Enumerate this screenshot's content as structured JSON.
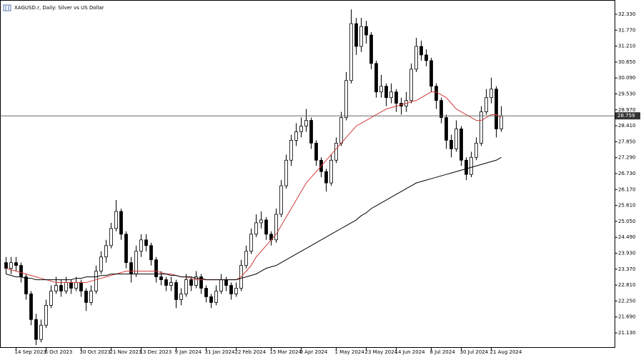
{
  "chart_data": {
    "type": "candlestick",
    "title": "XAGUSD.r, Daily:  Silver vs US Dollar",
    "categories": [
      null,
      null,
      "14 Sep 2023",
      null,
      null,
      null,
      null,
      null,
      "6 Oct 2023",
      null,
      null,
      null,
      null,
      null,
      null,
      "30 Oct 2023",
      null,
      null,
      null,
      null,
      null,
      "21 Nov 2023",
      null,
      null,
      null,
      null,
      null,
      "13 Dec 2023",
      null,
      null,
      null,
      null,
      null,
      null,
      "9 Jan 2024",
      null,
      null,
      null,
      null,
      null,
      "31 Jan 2024",
      null,
      null,
      null,
      null,
      null,
      "22 Feb 2024",
      null,
      null,
      null,
      null,
      null,
      null,
      "15 Mar 2024",
      null,
      null,
      null,
      null,
      null,
      "9 Apr 2024",
      null,
      null,
      null,
      null,
      null,
      null,
      "1 May 2024",
      null,
      null,
      null,
      null,
      null,
      "23 May 2024",
      null,
      null,
      null,
      null,
      null,
      "14 Jun 2024",
      null,
      null,
      null,
      null,
      null,
      null,
      "8 Jul 2024",
      null,
      null,
      null,
      null,
      null,
      "30 Jul 2024",
      null,
      null,
      null,
      null,
      null,
      "21 Aug 2024",
      null,
      null
    ],
    "open": [
      23.6,
      23.4,
      23.6,
      23.5,
      23.1,
      22.5,
      21.6,
      20.9,
      21.4,
      22.1,
      22.6,
      22.8,
      22.6,
      22.9,
      22.7,
      22.9,
      22.6,
      22.2,
      22.6,
      23.3,
      23.8,
      24.2,
      24.8,
      25.4,
      24.6,
      23.6,
      23.2,
      24.0,
      24.4,
      24.2,
      23.7,
      23.1,
      23.0,
      22.8,
      22.9,
      22.3,
      22.5,
      23.0,
      22.8,
      23.1,
      22.7,
      22.4,
      22.2,
      22.6,
      23.0,
      22.8,
      22.5,
      22.7,
      23.5,
      24.0,
      24.6,
      25.0,
      25.1,
      24.6,
      24.4,
      25.3,
      26.3,
      27.2,
      27.9,
      28.2,
      28.4,
      28.6,
      27.8,
      27.2,
      26.8,
      26.4,
      27.2,
      27.8,
      28.7,
      30.0,
      32.0,
      31.2,
      31.9,
      31.6,
      30.6,
      29.6,
      29.8,
      29.4,
      29.6,
      29.2,
      29.1,
      29.3,
      30.4,
      31.2,
      30.9,
      30.7,
      29.8,
      29.3,
      28.7,
      27.9,
      27.6,
      28.3,
      27.2,
      26.7,
      27.3,
      27.8,
      28.9,
      29.4,
      29.7,
      28.3
    ],
    "high": [
      23.8,
      23.8,
      23.8,
      23.6,
      23.2,
      22.6,
      21.8,
      21.6,
      22.3,
      22.8,
      23.1,
      23.0,
      23.1,
      23.0,
      23.1,
      23.0,
      22.7,
      22.8,
      23.5,
      24.0,
      24.4,
      25.0,
      25.8,
      25.5,
      24.7,
      23.8,
      24.2,
      24.6,
      24.6,
      24.3,
      23.8,
      23.3,
      23.1,
      23.1,
      23.0,
      22.7,
      23.2,
      23.1,
      23.3,
      23.2,
      22.8,
      22.5,
      22.8,
      23.2,
      23.1,
      22.9,
      22.9,
      23.7,
      24.2,
      24.8,
      25.3,
      25.4,
      25.2,
      24.7,
      25.5,
      26.5,
      27.4,
      28.1,
      28.5,
      28.7,
      29.0,
      28.7,
      27.9,
      27.3,
      26.9,
      27.4,
      28.0,
      28.9,
      30.3,
      32.5,
      32.2,
      32.2,
      32.1,
      31.7,
      30.7,
      30.2,
      29.9,
      29.9,
      29.7,
      29.4,
      29.6,
      30.6,
      31.5,
      31.4,
      31.1,
      30.8,
      29.9,
      29.4,
      28.8,
      28.1,
      28.6,
      28.4,
      27.3,
      27.5,
      28.0,
      29.1,
      29.7,
      30.1,
      29.8,
      29.1
    ],
    "low": [
      23.2,
      23.2,
      23.3,
      22.9,
      22.3,
      21.4,
      20.7,
      20.8,
      21.3,
      22.0,
      22.5,
      22.4,
      22.5,
      22.5,
      22.6,
      22.4,
      21.9,
      22.1,
      22.5,
      23.2,
      23.6,
      24.1,
      24.7,
      24.4,
      23.4,
      22.9,
      23.1,
      23.8,
      24.0,
      23.5,
      22.9,
      22.8,
      22.6,
      22.6,
      22.0,
      22.1,
      22.4,
      22.6,
      22.7,
      22.5,
      22.2,
      22.0,
      22.1,
      22.5,
      22.6,
      22.3,
      22.4,
      22.6,
      23.4,
      23.9,
      24.5,
      24.8,
      24.4,
      24.2,
      24.3,
      25.2,
      26.2,
      27.0,
      27.7,
      28.0,
      28.2,
      27.6,
      27.0,
      26.6,
      26.1,
      26.3,
      27.1,
      27.7,
      28.6,
      29.9,
      30.9,
      31.0,
      31.3,
      30.4,
      29.4,
      29.4,
      29.1,
      29.2,
      28.9,
      28.8,
      28.9,
      29.2,
      30.3,
      30.7,
      30.5,
      29.6,
      29.0,
      28.5,
      27.6,
      27.3,
      27.5,
      27.0,
      26.5,
      26.6,
      27.2,
      27.7,
      28.8,
      29.2,
      28.0,
      28.2
    ],
    "close": [
      23.4,
      23.6,
      23.5,
      23.1,
      22.5,
      21.6,
      20.9,
      21.4,
      22.1,
      22.6,
      22.8,
      22.6,
      22.9,
      22.7,
      22.9,
      22.6,
      22.2,
      22.6,
      23.3,
      23.8,
      24.2,
      24.8,
      25.4,
      24.6,
      23.6,
      23.2,
      24.0,
      24.4,
      24.2,
      23.7,
      23.1,
      23.0,
      22.8,
      22.9,
      22.3,
      22.5,
      23.0,
      22.8,
      23.1,
      22.7,
      22.4,
      22.2,
      22.6,
      23.0,
      22.8,
      22.5,
      22.7,
      23.5,
      24.0,
      24.6,
      25.0,
      25.1,
      24.6,
      24.4,
      25.3,
      26.3,
      27.2,
      27.9,
      28.2,
      28.4,
      28.6,
      27.8,
      27.2,
      26.8,
      26.4,
      27.2,
      27.8,
      28.7,
      30.0,
      32.0,
      31.2,
      31.9,
      31.6,
      30.6,
      29.6,
      29.8,
      29.4,
      29.6,
      29.2,
      29.1,
      29.3,
      30.4,
      31.2,
      30.9,
      30.7,
      29.8,
      29.3,
      28.7,
      27.9,
      27.6,
      28.3,
      27.2,
      26.7,
      27.3,
      27.8,
      28.9,
      29.4,
      29.7,
      28.3,
      28.76
    ],
    "lines": [
      {
        "color": "#d23a3a",
        "values": [
          23.4,
          23.35,
          23.3,
          23.25,
          23.2,
          23.15,
          23.1,
          23.05,
          23.0,
          22.95,
          22.9,
          22.9,
          22.9,
          22.9,
          22.9,
          22.9,
          22.9,
          22.95,
          23.0,
          23.05,
          23.1,
          23.15,
          23.2,
          23.25,
          23.3,
          23.3,
          23.3,
          23.3,
          23.3,
          23.3,
          23.3,
          23.25,
          23.2,
          23.2,
          23.15,
          23.1,
          23.1,
          23.05,
          23.0,
          23.0,
          23.0,
          23.0,
          23.0,
          23.0,
          23.0,
          23.0,
          23.0,
          23.1,
          23.3,
          23.5,
          23.8,
          24.0,
          24.2,
          24.4,
          24.6,
          24.9,
          25.2,
          25.5,
          25.8,
          26.1,
          26.4,
          26.6,
          26.8,
          27.0,
          27.2,
          27.4,
          27.6,
          27.8,
          28.0,
          28.2,
          28.4,
          28.5,
          28.6,
          28.7,
          28.8,
          28.9,
          29.0,
          29.05,
          29.1,
          29.15,
          29.2,
          29.25,
          29.3,
          29.4,
          29.5,
          29.6,
          29.6,
          29.5,
          29.4,
          29.2,
          29.0,
          28.9,
          28.8,
          28.7,
          28.6,
          28.6,
          28.7,
          28.8,
          28.8,
          28.7
        ]
      },
      {
        "color": "#000000",
        "values": [
          23.2,
          23.15,
          23.1,
          23.1,
          23.05,
          23.05,
          23.0,
          23.0,
          23.0,
          23.0,
          23.0,
          23.0,
          23.0,
          23.0,
          23.05,
          23.05,
          23.1,
          23.1,
          23.1,
          23.15,
          23.15,
          23.2,
          23.2,
          23.2,
          23.2,
          23.2,
          23.2,
          23.2,
          23.2,
          23.2,
          23.2,
          23.2,
          23.2,
          23.15,
          23.15,
          23.1,
          23.1,
          23.1,
          23.05,
          23.05,
          23.0,
          23.0,
          23.0,
          23.0,
          23.0,
          23.0,
          23.0,
          23.05,
          23.1,
          23.15,
          23.2,
          23.3,
          23.4,
          23.45,
          23.5,
          23.6,
          23.7,
          23.8,
          23.9,
          24.0,
          24.1,
          24.2,
          24.3,
          24.4,
          24.5,
          24.6,
          24.7,
          24.8,
          24.9,
          25.0,
          25.1,
          25.25,
          25.35,
          25.5,
          25.6,
          25.7,
          25.8,
          25.9,
          26.0,
          26.1,
          26.2,
          26.3,
          26.4,
          26.45,
          26.5,
          26.55,
          26.6,
          26.65,
          26.7,
          26.75,
          26.8,
          26.85,
          26.9,
          26.95,
          27.0,
          27.05,
          27.1,
          27.15,
          27.2,
          27.3
        ]
      }
    ],
    "current_price": 28.759,
    "ylim": [
      20.604,
      32.806
    ],
    "yticks": [
      {
        "value": 21.13,
        "label": "21.130"
      },
      {
        "value": 21.69,
        "label": "21.690"
      },
      {
        "value": 22.25,
        "label": "22.250"
      },
      {
        "value": 22.81,
        "label": "22.810"
      },
      {
        "value": 23.37,
        "label": "23.370"
      },
      {
        "value": 23.93,
        "label": "23.930"
      },
      {
        "value": 24.49,
        "label": "24.490"
      },
      {
        "value": 25.05,
        "label": "25.050"
      },
      {
        "value": 25.61,
        "label": "25.610"
      },
      {
        "value": 26.17,
        "label": "26.170"
      },
      {
        "value": 26.73,
        "label": "26.730"
      },
      {
        "value": 27.29,
        "label": "27.290"
      },
      {
        "value": 27.85,
        "label": "27.850"
      },
      {
        "value": 28.41,
        "label": "28.410"
      },
      {
        "value": 28.97,
        "label": "28.970"
      },
      {
        "value": 29.53,
        "label": "29.530"
      },
      {
        "value": 30.09,
        "label": "30.090"
      },
      {
        "value": 30.65,
        "label": "30.650"
      },
      {
        "value": 31.21,
        "label": "31.210"
      },
      {
        "value": 31.77,
        "label": "31.770"
      },
      {
        "value": 32.33,
        "label": "32.330"
      }
    ],
    "bull_color": "#ffffff",
    "bear_color": "#000000"
  }
}
